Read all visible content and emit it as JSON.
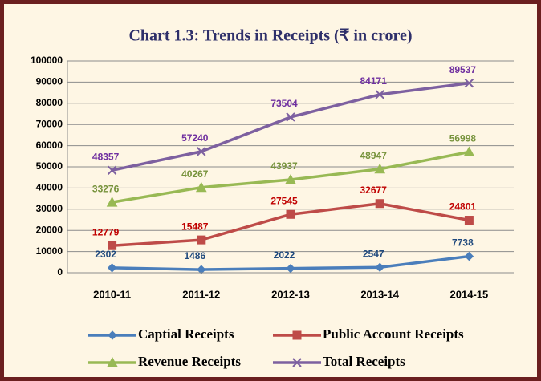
{
  "chart_data": {
    "type": "line",
    "title": "Chart 1.3: Trends in Receipts (₹ in crore)",
    "categories": [
      "2010-11",
      "2011-12",
      "2012-13",
      "2013-14",
      "2014-15"
    ],
    "series": [
      {
        "name": "Captial Receipts",
        "color": "#4a7ebb",
        "label_color": "#1f497d",
        "marker": "diamond",
        "values": [
          2302,
          1486,
          2022,
          2547,
          7738
        ]
      },
      {
        "name": "Public Account Receipts",
        "color": "#be4b48",
        "label_color": "#c00000",
        "marker": "square",
        "values": [
          12779,
          15487,
          27545,
          32677,
          24801
        ]
      },
      {
        "name": "Revenue Receipts",
        "color": "#98b954",
        "label_color": "#77933c",
        "marker": "triangle",
        "values": [
          33276,
          40267,
          43937,
          48947,
          56998
        ]
      },
      {
        "name": "Total Receipts",
        "color": "#7d60a0",
        "label_color": "#7030a0",
        "marker": "x",
        "values": [
          48357,
          57240,
          73504,
          84171,
          89537
        ]
      }
    ],
    "ylim": [
      0,
      100000
    ],
    "yticks": [
      0,
      10000,
      20000,
      30000,
      40000,
      50000,
      60000,
      70000,
      80000,
      90000,
      100000
    ],
    "grid": true
  }
}
